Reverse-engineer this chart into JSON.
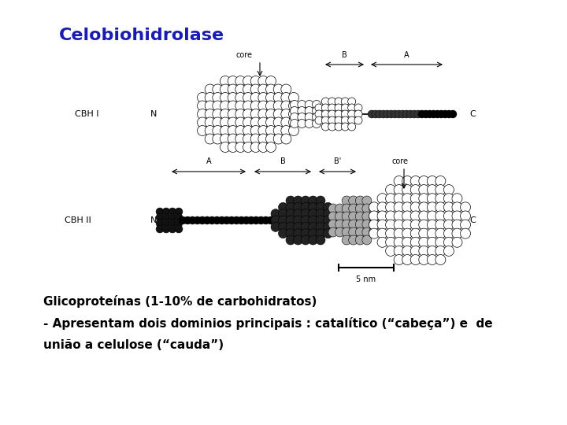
{
  "title": "Celobiohidrolase",
  "title_color": "#1a1ab5",
  "title_fontsize": 16,
  "title_bold": true,
  "bg_color": "#ffffff",
  "text_line1": "Glicoproteínas (1-10% de carbohidratos)",
  "text_line2": "- Apresentam dois dominios principais : catalítico (“cabeça”) e  de",
  "text_line3": "união a celulose (“cauda”)",
  "text_fontsize": 11,
  "text_bold": true,
  "text_color": "#000000"
}
